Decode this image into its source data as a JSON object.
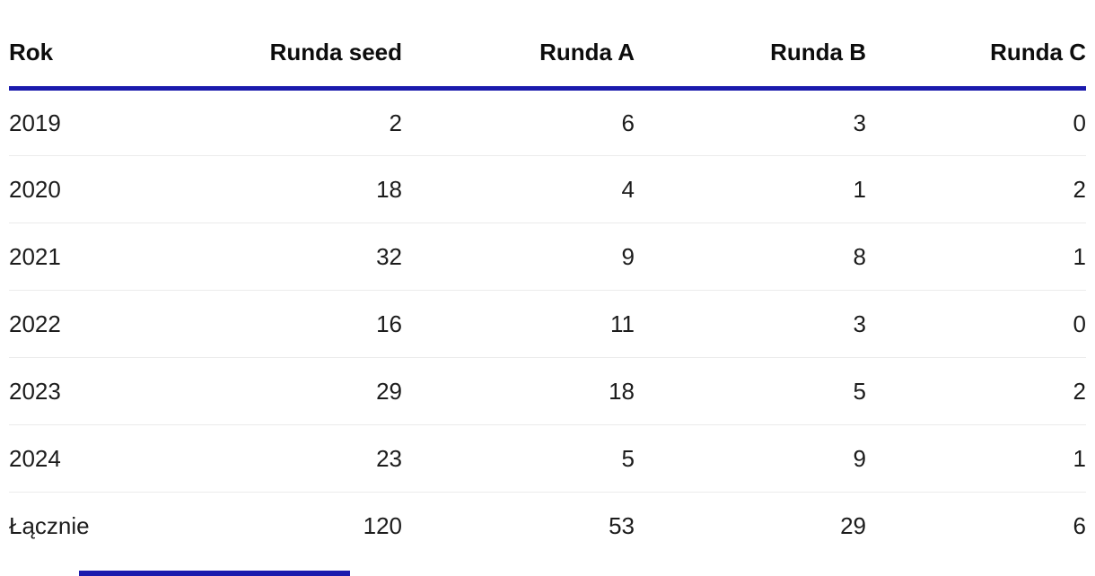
{
  "chart_data": {
    "type": "table",
    "columns": [
      "Rok",
      "Runda seed",
      "Runda A",
      "Runda B",
      "Runda C"
    ],
    "rows": [
      {
        "label": "2019",
        "values": [
          "2",
          "6",
          "3",
          "0"
        ]
      },
      {
        "label": "2020",
        "values": [
          "18",
          "4",
          "1",
          "2"
        ]
      },
      {
        "label": "2021",
        "values": [
          "32",
          "9",
          "8",
          "1"
        ]
      },
      {
        "label": "2022",
        "values": [
          "16",
          "11",
          "3",
          "0"
        ]
      },
      {
        "label": "2023",
        "values": [
          "29",
          "18",
          "5",
          "2"
        ]
      },
      {
        "label": "2024",
        "values": [
          "23",
          "5",
          "9",
          "1"
        ]
      },
      {
        "label": "Łącznie",
        "values": [
          "120",
          "53",
          "29",
          "6"
        ]
      }
    ],
    "totals_row_label": "Łącznie",
    "layout": {
      "header_alignment": "right",
      "first_column_alignment": "left",
      "grid": "horizontal-dividers-only"
    }
  },
  "colors": {
    "header_rule": "#1b1aad",
    "row_divider": "#ebebeb",
    "header_text": "#0d0d0d",
    "body_text": "#1c1c1c",
    "background": "#ffffff",
    "partial_bottom_rule": "#1b1aad"
  }
}
